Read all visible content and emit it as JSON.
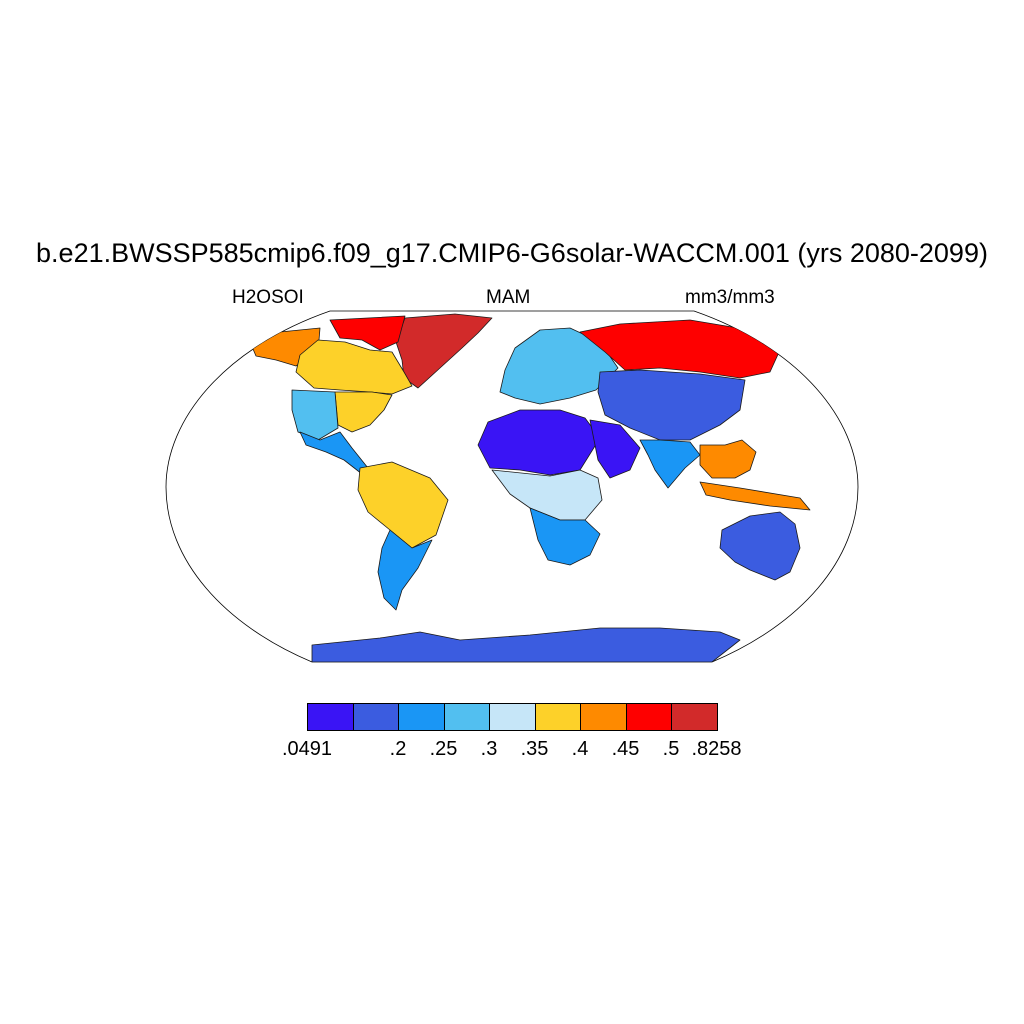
{
  "title": "b.e21.BWSSP585cmip6.f09_g17.CMIP6-G6solar-WACCM.001 (yrs 2080-2099)",
  "subtitle_left": "H2OSOI",
  "subtitle_center": "MAM",
  "subtitle_right": "mm3/mm3",
  "colorbar": {
    "colors": [
      "#3a14f5",
      "#3b5ce0",
      "#1a96f5",
      "#52bff0",
      "#c6e6f8",
      "#fdd129",
      "#fe8a00",
      "#fe0000",
      "#d22a2a"
    ],
    "labels": [
      ".0491",
      ".2",
      ".25",
      ".3",
      ".35",
      ".4",
      ".45",
      ".5",
      ".8258"
    ]
  },
  "map_data": {
    "projection": "Robinson",
    "variable": "H2OSOI",
    "season": "MAM",
    "units": "mm3/mm3",
    "coastlines": true,
    "regions": [
      {
        "name": "Greenland",
        "class": 8
      },
      {
        "name": "Arctic Canada",
        "class": 7
      },
      {
        "name": "Alaska",
        "class": 6
      },
      {
        "name": "Canada",
        "class": 5
      },
      {
        "name": "Eastern USA",
        "class": 5
      },
      {
        "name": "Western USA",
        "class": 3
      },
      {
        "name": "Mexico",
        "class": 2
      },
      {
        "name": "Amazon",
        "class": 5
      },
      {
        "name": "Southern South America",
        "class": 2
      },
      {
        "name": "Europe",
        "class": 3
      },
      {
        "name": "Northern Russia",
        "class": 7
      },
      {
        "name": "Central Asia",
        "class": 1
      },
      {
        "name": "Sahara",
        "class": 0
      },
      {
        "name": "Arabia",
        "class": 0
      },
      {
        "name": "Central Africa",
        "class": 4
      },
      {
        "name": "Southern Africa",
        "class": 2
      },
      {
        "name": "South Asia",
        "class": 2
      },
      {
        "name": "Southeast Asia",
        "class": 6
      },
      {
        "name": "Australia",
        "class": 1
      },
      {
        "name": "Antarctica",
        "class": 1
      }
    ]
  }
}
